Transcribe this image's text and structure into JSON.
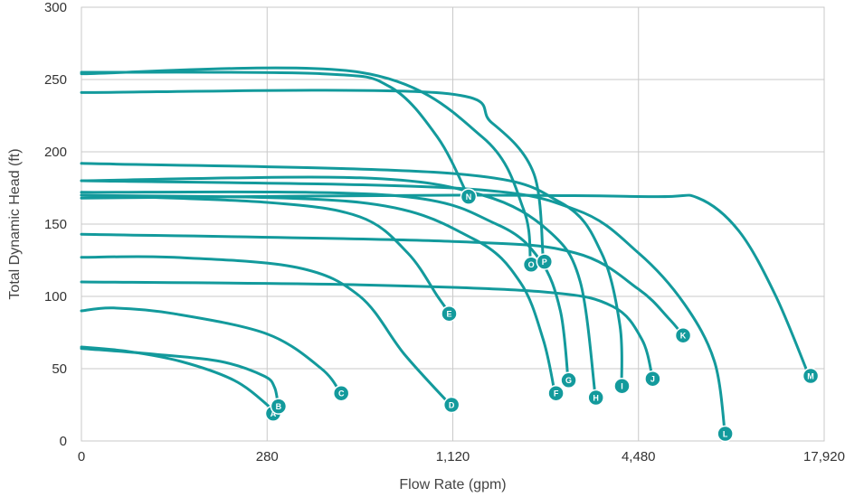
{
  "chart_data": {
    "type": "line",
    "title": "",
    "xlabel": "Flow Rate (gpm)",
    "ylabel": "Total Dynamic Head (ft)",
    "x_scale": "log",
    "x_ticks": [
      0,
      280,
      1120,
      4480,
      17920
    ],
    "x_tick_labels": [
      "0",
      "280",
      "1,120",
      "4,480",
      "17,920"
    ],
    "y_ticks": [
      0,
      50,
      100,
      150,
      200,
      250,
      300
    ],
    "y_tick_labels": [
      "0",
      "50",
      "100",
      "150",
      "200",
      "250",
      "300"
    ],
    "ylim": [
      0,
      300
    ],
    "grid": true,
    "legend": "none",
    "colors": {
      "series": "#139a9c",
      "grid": "#c9c9c9",
      "marker_text": "#ffffff"
    },
    "series": [
      {
        "name": "A",
        "points": [
          [
            0,
            65
          ],
          [
            70,
            62
          ],
          [
            150,
            55
          ],
          [
            230,
            42
          ],
          [
            280,
            25
          ],
          [
            292,
            19
          ]
        ],
        "label_at": [
          293,
          19
        ]
      },
      {
        "name": "B",
        "points": [
          [
            0,
            64
          ],
          [
            110,
            60
          ],
          [
            210,
            55
          ],
          [
            275,
            45
          ],
          [
            296,
            37
          ],
          [
            304,
            24
          ]
        ],
        "label_at": [
          305,
          24
        ]
      },
      {
        "name": "C",
        "points": [
          [
            0,
            90
          ],
          [
            48,
            92
          ],
          [
            140,
            88
          ],
          [
            280,
            74
          ],
          [
            420,
            50
          ],
          [
            485,
            33
          ]
        ],
        "label_at": [
          487,
          33
        ]
      },
      {
        "name": "D",
        "points": [
          [
            0,
            127
          ],
          [
            140,
            127
          ],
          [
            350,
            120
          ],
          [
            560,
            100
          ],
          [
            780,
            60
          ],
          [
            1100,
            25
          ]
        ],
        "label_at": [
          1110,
          25
        ]
      },
      {
        "name": "E",
        "points": [
          [
            0,
            170
          ],
          [
            280,
            165
          ],
          [
            560,
            155
          ],
          [
            800,
            130
          ],
          [
            1000,
            100
          ],
          [
            1080,
            90
          ]
        ],
        "label_at": [
          1090,
          88
        ]
      },
      {
        "name": "F",
        "points": [
          [
            0,
            170
          ],
          [
            560,
            165
          ],
          [
            1300,
            140
          ],
          [
            1850,
            110
          ],
          [
            2200,
            70
          ],
          [
            2400,
            33
          ]
        ],
        "label_at": [
          2420,
          33
        ]
      },
      {
        "name": "G",
        "points": [
          [
            0,
            172
          ],
          [
            700,
            170
          ],
          [
            1550,
            150
          ],
          [
            2150,
            125
          ],
          [
            2500,
            90
          ],
          [
            2650,
            42
          ]
        ],
        "label_at": [
          2660,
          42
        ]
      },
      {
        "name": "H",
        "points": [
          [
            0,
            180
          ],
          [
            560,
            182
          ],
          [
            1400,
            170
          ],
          [
            2300,
            145
          ],
          [
            2900,
            110
          ],
          [
            3250,
            30
          ]
        ],
        "label_at": [
          3260,
          30
        ]
      },
      {
        "name": "I",
        "points": [
          [
            0,
            192
          ],
          [
            1120,
            185
          ],
          [
            2500,
            165
          ],
          [
            3400,
            130
          ],
          [
            3900,
            80
          ],
          [
            3950,
            39
          ]
        ],
        "label_at": [
          3960,
          38
        ]
      },
      {
        "name": "J",
        "points": [
          [
            0,
            110
          ],
          [
            560,
            108
          ],
          [
            2240,
            103
          ],
          [
            3700,
            93
          ],
          [
            4600,
            70
          ],
          [
            4970,
            44
          ]
        ],
        "label_at": [
          4980,
          43
        ]
      },
      {
        "name": "K",
        "points": [
          [
            0,
            143
          ],
          [
            1120,
            138
          ],
          [
            2800,
            130
          ],
          [
            4480,
            105
          ],
          [
            5600,
            85
          ],
          [
            6200,
            74
          ]
        ],
        "label_at": [
          6250,
          73
        ]
      },
      {
        "name": "L",
        "points": [
          [
            0,
            180
          ],
          [
            1120,
            175
          ],
          [
            2800,
            160
          ],
          [
            4480,
            130
          ],
          [
            6300,
            95
          ],
          [
            7900,
            55
          ],
          [
            8550,
            5
          ]
        ],
        "label_at": [
          8560,
          5
        ]
      },
      {
        "name": "M",
        "points": [
          [
            0,
            168
          ],
          [
            1120,
            170
          ],
          [
            5000,
            169
          ],
          [
            7000,
            168
          ],
          [
            9500,
            145
          ],
          [
            12500,
            100
          ],
          [
            16000,
            45
          ]
        ],
        "label_at": [
          16200,
          45
        ]
      },
      {
        "name": "N",
        "points": [
          [
            0,
            255
          ],
          [
            420,
            254
          ],
          [
            700,
            245
          ],
          [
            1000,
            210
          ],
          [
            1250,
            170
          ]
        ],
        "label_at": [
          1260,
          169
        ]
      },
      {
        "name": "O",
        "points": [
          [
            0,
            254
          ],
          [
            560,
            255
          ],
          [
            1400,
            210
          ],
          [
            1900,
            160
          ],
          [
            2000,
            125
          ]
        ],
        "label_at": [
          2010,
          122
        ]
      },
      {
        "name": "P",
        "points": [
          [
            0,
            241
          ],
          [
            980,
            241
          ],
          [
            1500,
            220
          ],
          [
            2050,
            185
          ],
          [
            2200,
            125
          ]
        ],
        "label_at": [
          2220,
          124
        ]
      }
    ]
  }
}
